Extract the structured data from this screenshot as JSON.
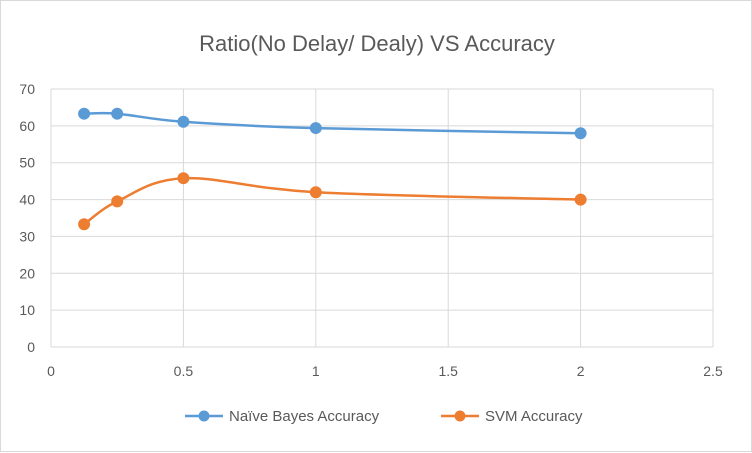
{
  "chart_data": {
    "type": "scatter",
    "title": "Ratio(No Delay/ Dealy) VS Accuracy",
    "xlabel": "",
    "ylabel": "",
    "xlim": [
      0,
      2.5
    ],
    "ylim": [
      0,
      70
    ],
    "x_ticks": [
      0,
      0.5,
      1,
      1.5,
      2,
      2.5
    ],
    "x_tick_labels": [
      "0",
      "0.5",
      "1",
      "1.5",
      "2",
      "2.5"
    ],
    "y_ticks": [
      0,
      10,
      20,
      30,
      40,
      50,
      60,
      70
    ],
    "y_tick_labels": [
      "0",
      "10",
      "20",
      "30",
      "40",
      "50",
      "60",
      "70"
    ],
    "grid": true,
    "smooth_lines": true,
    "legend_position": "bottom",
    "series": [
      {
        "name": "Naïve Bayes Accuracy",
        "color": "#5b9bd5",
        "x": [
          0.125,
          0.25,
          0.5,
          1,
          2
        ],
        "y": [
          63.3,
          63.3,
          61.1,
          59.4,
          58.0
        ]
      },
      {
        "name": "SVM Accuracy",
        "color": "#ed7d31",
        "x": [
          0.125,
          0.25,
          0.5,
          1,
          2
        ],
        "y": [
          33.3,
          39.5,
          45.8,
          42.0,
          40.0
        ]
      }
    ]
  }
}
